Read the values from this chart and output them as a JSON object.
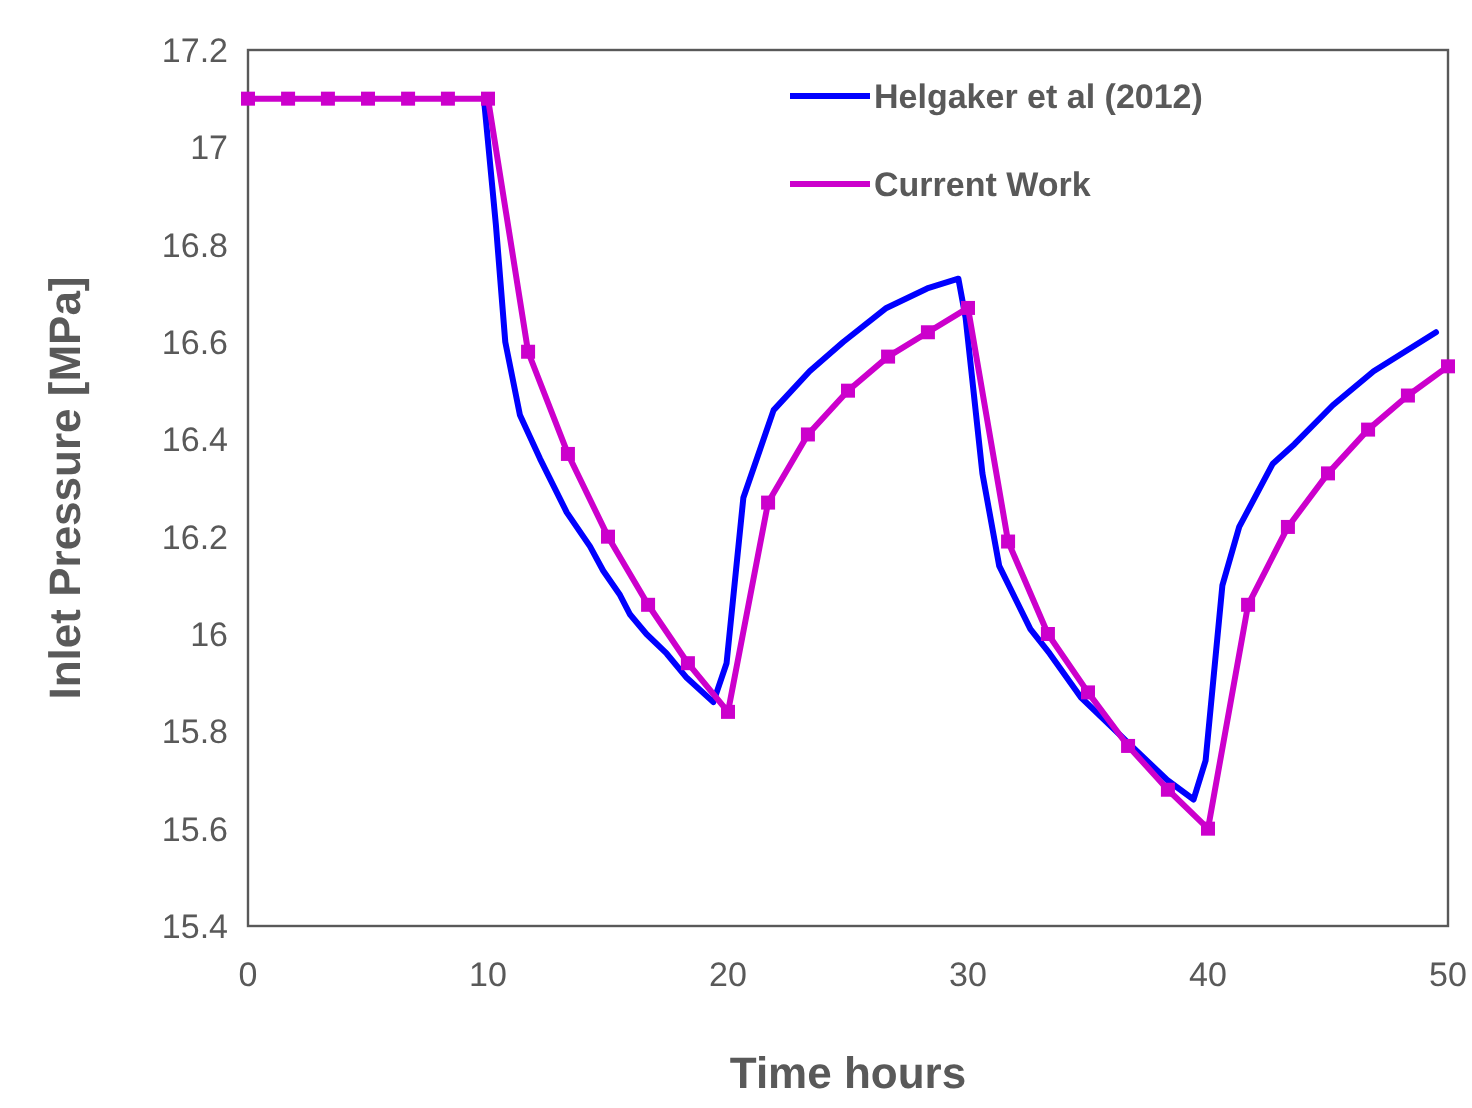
{
  "chart_data": {
    "type": "line",
    "xlabel": "Time hours",
    "ylabel": "Inlet Pressure [MPa]",
    "xlim": [
      0,
      50
    ],
    "ylim": [
      15.4,
      17.2
    ],
    "xticks": [
      0,
      10,
      20,
      30,
      40,
      50
    ],
    "yticks": [
      15.4,
      15.6,
      15.8,
      16,
      16.2,
      16.4,
      16.6,
      16.8,
      17,
      17.2
    ],
    "grid": false,
    "legend": "top right",
    "series": [
      {
        "name": "Helgaker et al (2012)",
        "color": "#0000ff",
        "marker": "none",
        "x": [
          9.83,
          10.33,
          10.72,
          11.33,
          12.17,
          13.28,
          14.25,
          14.8,
          15.5,
          15.92,
          16.6,
          17.44,
          18.28,
          19.39,
          19.94,
          20.64,
          21.9,
          23.4,
          24.8,
          26.6,
          28.3,
          29.6,
          29.9,
          30.6,
          31.3,
          32.6,
          33.4,
          34.7,
          36.6,
          38.3,
          39.4,
          39.9,
          40.6,
          41.3,
          42.7,
          43.6,
          45.2,
          46.9,
          49.5
        ],
        "values": [
          17.1,
          16.84,
          16.6,
          16.45,
          16.36,
          16.25,
          16.18,
          16.13,
          16.08,
          16.04,
          16.0,
          15.96,
          15.91,
          15.86,
          15.94,
          16.28,
          16.46,
          16.54,
          16.6,
          16.67,
          16.71,
          16.73,
          16.65,
          16.33,
          16.14,
          16.01,
          15.96,
          15.87,
          15.78,
          15.7,
          15.66,
          15.74,
          16.1,
          16.22,
          16.35,
          16.39,
          16.47,
          16.54,
          16.62
        ]
      },
      {
        "name": "Current Work",
        "color": "#cc00cc",
        "marker": "square",
        "x": [
          0,
          1.67,
          3.33,
          5,
          6.67,
          8.33,
          10,
          11.67,
          13.33,
          15,
          16.67,
          18.33,
          20,
          21.67,
          23.33,
          25,
          26.67,
          28.33,
          30,
          31.67,
          33.33,
          35,
          36.67,
          38.33,
          40,
          41.67,
          43.33,
          45,
          46.67,
          48.33,
          50
        ],
        "values": [
          17.1,
          17.1,
          17.1,
          17.1,
          17.1,
          17.1,
          17.1,
          16.58,
          16.37,
          16.2,
          16.06,
          15.94,
          15.84,
          16.27,
          16.41,
          16.5,
          16.57,
          16.62,
          16.67,
          16.19,
          16.0,
          15.88,
          15.77,
          15.68,
          15.6,
          16.06,
          16.22,
          16.33,
          16.42,
          16.49,
          16.55
        ]
      }
    ]
  }
}
